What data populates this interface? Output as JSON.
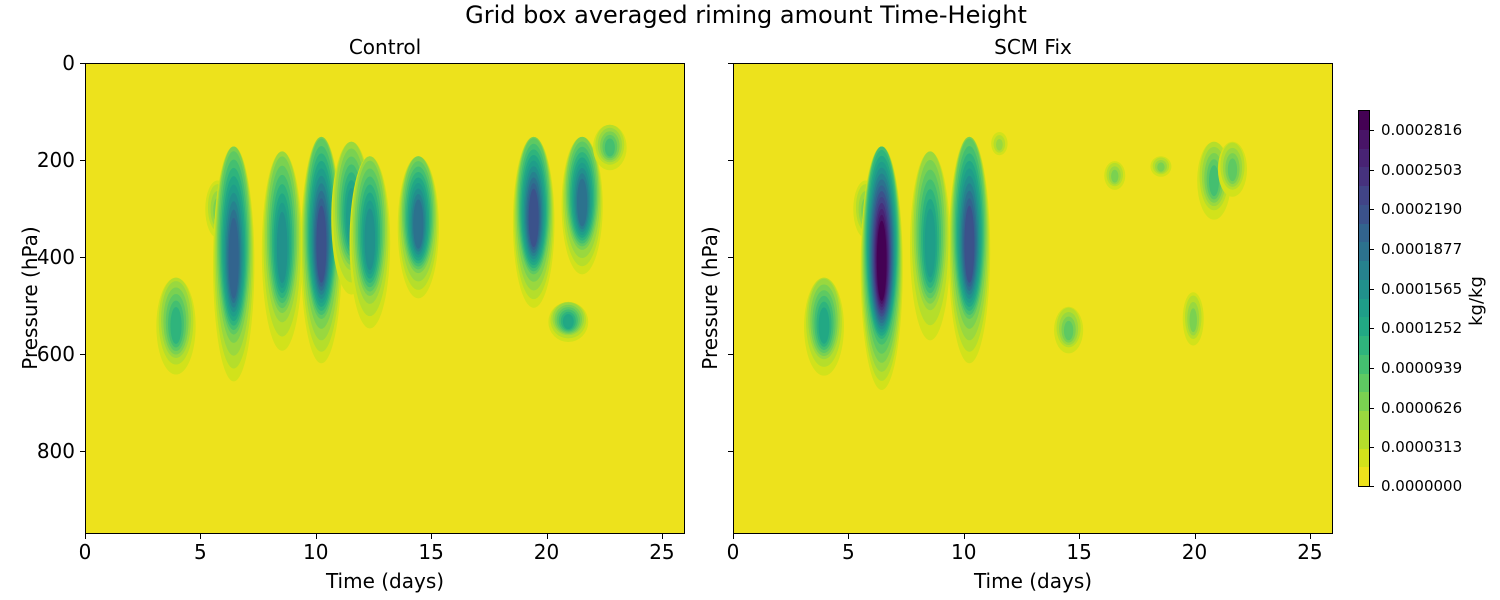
{
  "figure": {
    "suptitle": "Grid box averaged riming amount Time-Height"
  },
  "colorbar": {
    "label": "kg/kg",
    "colormap": "viridis_r",
    "ticks": [
      "0.0000000",
      "0.0000313",
      "0.0000626",
      "0.0000939",
      "0.0001252",
      "0.0001565",
      "0.0001877",
      "0.0002190",
      "0.0002503",
      "0.0002816"
    ],
    "segment_colors": [
      "#ede21c",
      "#d2e21b",
      "#b5de2b",
      "#99d83f",
      "#7ad151",
      "#5ec962",
      "#44bf70",
      "#2fb47c",
      "#22a884",
      "#1f9e89",
      "#21918c",
      "#26828e",
      "#2c728e",
      "#32648e",
      "#3b528b",
      "#414487",
      "#46327e",
      "#482374",
      "#481467",
      "#440154"
    ]
  },
  "chart_data": [
    {
      "type": "heatmap",
      "title": "Control",
      "xlabel": "Time (days)",
      "ylabel": "Pressure (hPa)",
      "xlim": [
        0,
        26
      ],
      "ylim": [
        970,
        0
      ],
      "xticks": [
        "0",
        "5",
        "10",
        "15",
        "20",
        "25"
      ],
      "yticks": [
        "0",
        "200",
        "400",
        "600",
        "800"
      ],
      "z_units": "kg/kg",
      "zlim": [
        0.0,
        0.0002816
      ],
      "background_value": 0.0,
      "features": [
        {
          "t_day": 3.9,
          "p_top": 440,
          "p_bottom": 660,
          "peak": 0.00011
        },
        {
          "t_day": 5.7,
          "p_top": 240,
          "p_bottom": 380,
          "peak": 7e-05
        },
        {
          "t_day": 6.4,
          "p_top": 170,
          "p_bottom": 680,
          "peak": 0.00019
        },
        {
          "t_day": 8.5,
          "p_top": 180,
          "p_bottom": 620,
          "peak": 0.00015
        },
        {
          "t_day": 10.2,
          "p_top": 150,
          "p_bottom": 640,
          "peak": 0.0002
        },
        {
          "t_day": 11.5,
          "p_top": 160,
          "p_bottom": 500,
          "peak": 0.00013
        },
        {
          "t_day": 12.3,
          "p_top": 190,
          "p_bottom": 570,
          "peak": 0.00015
        },
        {
          "t_day": 14.4,
          "p_top": 190,
          "p_bottom": 500,
          "peak": 0.00017
        },
        {
          "t_day": 19.4,
          "p_top": 150,
          "p_bottom": 520,
          "peak": 0.0002
        },
        {
          "t_day": 20.9,
          "p_top": 490,
          "p_bottom": 580,
          "peak": 0.00012
        },
        {
          "t_day": 21.5,
          "p_top": 150,
          "p_bottom": 450,
          "peak": 0.00017
        },
        {
          "t_day": 22.7,
          "p_top": 125,
          "p_bottom": 230,
          "peak": 9e-05
        }
      ]
    },
    {
      "type": "heatmap",
      "title": "SCM Fix",
      "xlabel": "Time (days)",
      "ylabel": "Pressure (hPa)",
      "xlim": [
        0,
        26
      ],
      "ylim": [
        970,
        0
      ],
      "xticks": [
        "0",
        "5",
        "10",
        "15",
        "20",
        "25"
      ],
      "yticks": [],
      "z_units": "kg/kg",
      "zlim": [
        0.0,
        0.0002816
      ],
      "background_value": 0.0,
      "features": [
        {
          "t_day": 3.9,
          "p_top": 440,
          "p_bottom": 660,
          "peak": 0.00012
        },
        {
          "t_day": 5.7,
          "p_top": 240,
          "p_bottom": 380,
          "peak": 7e-05
        },
        {
          "t_day": 6.4,
          "p_top": 170,
          "p_bottom": 690,
          "peak": 0.00028
        },
        {
          "t_day": 8.5,
          "p_top": 180,
          "p_bottom": 600,
          "peak": 0.00014
        },
        {
          "t_day": 10.2,
          "p_top": 150,
          "p_bottom": 640,
          "peak": 0.00021
        },
        {
          "t_day": 11.5,
          "p_top": 140,
          "p_bottom": 200,
          "peak": 5e-05
        },
        {
          "t_day": 14.5,
          "p_top": 500,
          "p_bottom": 610,
          "peak": 8e-05
        },
        {
          "t_day": 16.5,
          "p_top": 200,
          "p_bottom": 270,
          "peak": 6e-05
        },
        {
          "t_day": 18.5,
          "p_top": 190,
          "p_bottom": 240,
          "peak": 6e-05
        },
        {
          "t_day": 19.9,
          "p_top": 470,
          "p_bottom": 600,
          "peak": 6e-05
        },
        {
          "t_day": 20.8,
          "p_top": 160,
          "p_bottom": 340,
          "peak": 9e-05
        },
        {
          "t_day": 21.6,
          "p_top": 160,
          "p_bottom": 290,
          "peak": 8e-05
        }
      ]
    }
  ]
}
